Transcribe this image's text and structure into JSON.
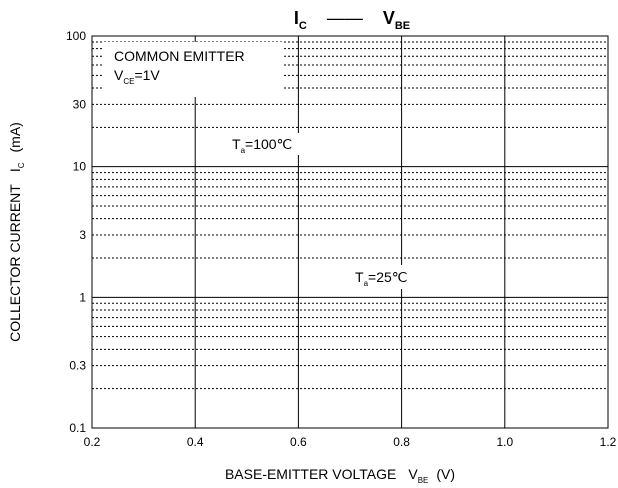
{
  "chart_data": {
    "type": "line",
    "title": {
      "main": "I",
      "main_sub": "C",
      "dash": "——",
      "right": "V",
      "right_sub": "BE"
    },
    "xlabel": {
      "text": "BASE-EMITTER VOLTAGE",
      "sym": "V",
      "sub": "BE",
      "unit": "(V)"
    },
    "ylabel": {
      "text": "COLLECTOR CURRENT",
      "sym": "I",
      "sub": "C",
      "unit": "(mA)"
    },
    "x_scale": "linear",
    "y_scale": "log",
    "xlim": [
      0.2,
      1.2
    ],
    "ylim": [
      0.1,
      100
    ],
    "x_ticks": [
      "0.2",
      "0.4",
      "0.6",
      "0.8",
      "1.0",
      "1.2"
    ],
    "y_ticks": [
      "0.1",
      "0.3",
      "1",
      "3",
      "10",
      "30",
      "100"
    ],
    "grid": true,
    "annotations": {
      "condition_line1": "COMMON EMITTER",
      "condition_sym": "V",
      "condition_sub": "CE",
      "condition_val": "=1V",
      "t1_sym": "T",
      "t1_sub": "a",
      "t1_val": "=100℃",
      "t2_sym": "T",
      "t2_sub": "a",
      "t2_val": "=25℃"
    },
    "series": []
  }
}
